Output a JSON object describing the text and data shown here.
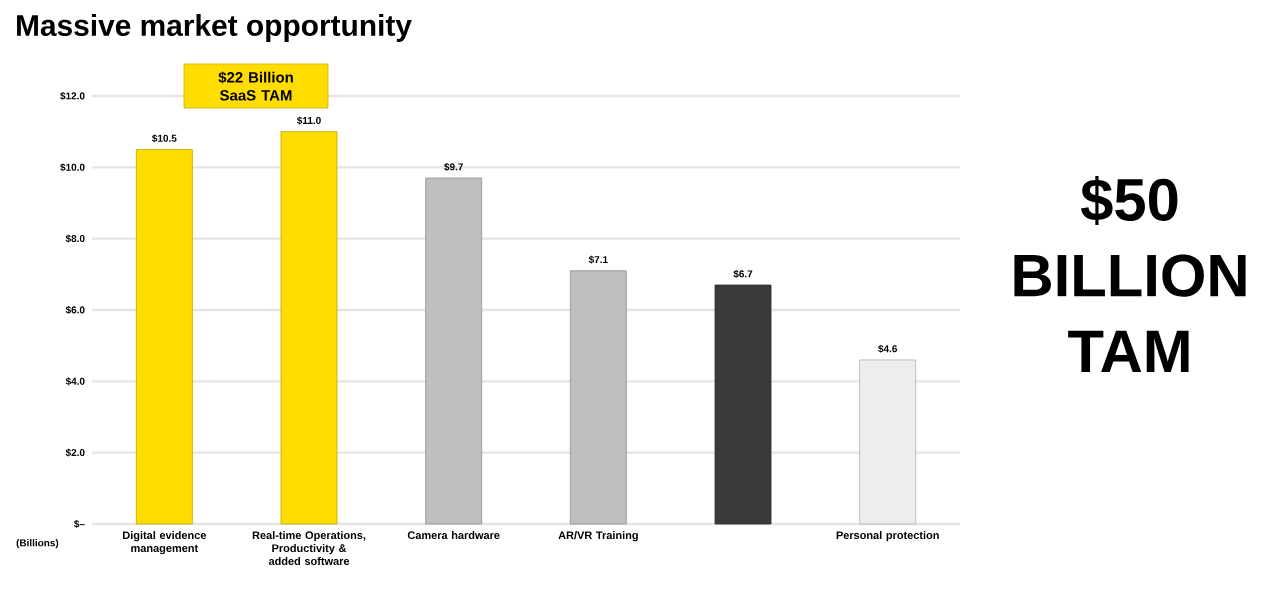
{
  "chart_data": {
    "type": "bar",
    "title": "Massive market opportunity",
    "ylabel": "(Billions)",
    "categories": [
      "Digital evidence management",
      "Real-time Operations, Productivity & added software",
      "Camera hardware",
      "AR/VR Training",
      null,
      "Personal protection"
    ],
    "values": [
      10.5,
      11.0,
      9.7,
      7.1,
      6.7,
      4.6
    ],
    "value_labels": [
      "$10.5",
      "$11.0",
      "$9.7",
      "$7.1",
      "$6.7",
      "$4.6"
    ],
    "colors": [
      "#ffdd00",
      "#ffdd00",
      "#bfbfbf",
      "#bfbfbf",
      "#3a3a3a",
      "#ededed"
    ],
    "ylim": [
      0,
      12
    ],
    "yticks": [
      {
        "value": 0,
        "label": "$–"
      },
      {
        "value": 2,
        "label": "$2.0"
      },
      {
        "value": 4,
        "label": "$4.0"
      },
      {
        "value": 6,
        "label": "$6.0"
      },
      {
        "value": 8,
        "label": "$8.0"
      },
      {
        "value": 10,
        "label": "$10.0"
      },
      {
        "value": 12,
        "label": "$12.0"
      }
    ],
    "grid": "y",
    "annotations": [
      "$22 Billion SaaS TAM",
      "$50 BILLION TAM"
    ]
  }
}
